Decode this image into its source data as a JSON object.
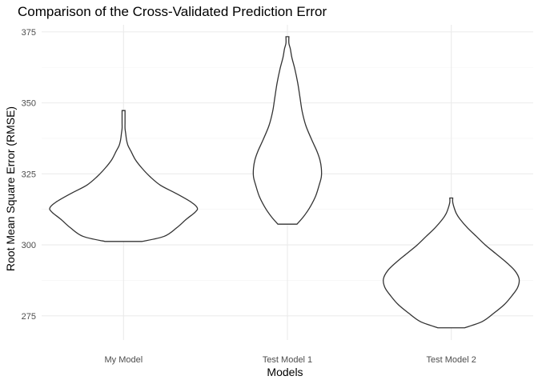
{
  "chart_data": {
    "type": "violin",
    "title": "Comparison of the Cross-Validated Prediction Error",
    "xlabel": "Models",
    "ylabel": "Root Mean Square Error (RMSE)",
    "ylim": [
      266.5,
      377.5
    ],
    "yticks": [
      275,
      300,
      325,
      350,
      375
    ],
    "grid": true,
    "categories": [
      "My Model",
      "Test Model 1",
      "Test Model 2"
    ],
    "series": [
      {
        "name": "My Model",
        "min": 301.2,
        "max": 347.3,
        "density": [
          [
            301.2,
            0.25
          ],
          [
            303,
            0.55
          ],
          [
            306,
            0.72
          ],
          [
            309,
            0.85
          ],
          [
            311.5,
            0.97
          ],
          [
            313,
            1.0
          ],
          [
            315,
            0.92
          ],
          [
            318,
            0.72
          ],
          [
            321,
            0.5
          ],
          [
            324,
            0.36
          ],
          [
            327,
            0.25
          ],
          [
            330,
            0.16
          ],
          [
            333,
            0.1
          ],
          [
            335,
            0.06
          ],
          [
            337,
            0.04
          ],
          [
            339,
            0.03
          ],
          [
            341,
            0.02
          ],
          [
            343,
            0.02
          ],
          [
            345,
            0.02
          ],
          [
            347.3,
            0.02
          ]
        ]
      },
      {
        "name": "Test Model 1",
        "min": 307.3,
        "max": 373.3,
        "density": [
          [
            307.3,
            0.13
          ],
          [
            310,
            0.22
          ],
          [
            313,
            0.3
          ],
          [
            317,
            0.38
          ],
          [
            321,
            0.43
          ],
          [
            324,
            0.46
          ],
          [
            327,
            0.46
          ],
          [
            330,
            0.44
          ],
          [
            333,
            0.4
          ],
          [
            337,
            0.33
          ],
          [
            342,
            0.25
          ],
          [
            347,
            0.2
          ],
          [
            352,
            0.17
          ],
          [
            357,
            0.14
          ],
          [
            362,
            0.1
          ],
          [
            366,
            0.06
          ],
          [
            369,
            0.04
          ],
          [
            371,
            0.02
          ],
          [
            373.3,
            0.02
          ]
        ]
      },
      {
        "name": "Test Model 2",
        "min": 270.8,
        "max": 316.5,
        "density": [
          [
            270.8,
            0.18
          ],
          [
            273,
            0.42
          ],
          [
            276,
            0.58
          ],
          [
            279,
            0.72
          ],
          [
            282,
            0.82
          ],
          [
            285,
            0.9
          ],
          [
            288,
            0.92
          ],
          [
            291,
            0.86
          ],
          [
            294,
            0.74
          ],
          [
            297,
            0.6
          ],
          [
            300,
            0.46
          ],
          [
            303,
            0.34
          ],
          [
            306,
            0.22
          ],
          [
            309,
            0.12
          ],
          [
            311,
            0.07
          ],
          [
            313,
            0.04
          ],
          [
            315,
            0.02
          ],
          [
            316.5,
            0.02
          ]
        ]
      }
    ]
  }
}
